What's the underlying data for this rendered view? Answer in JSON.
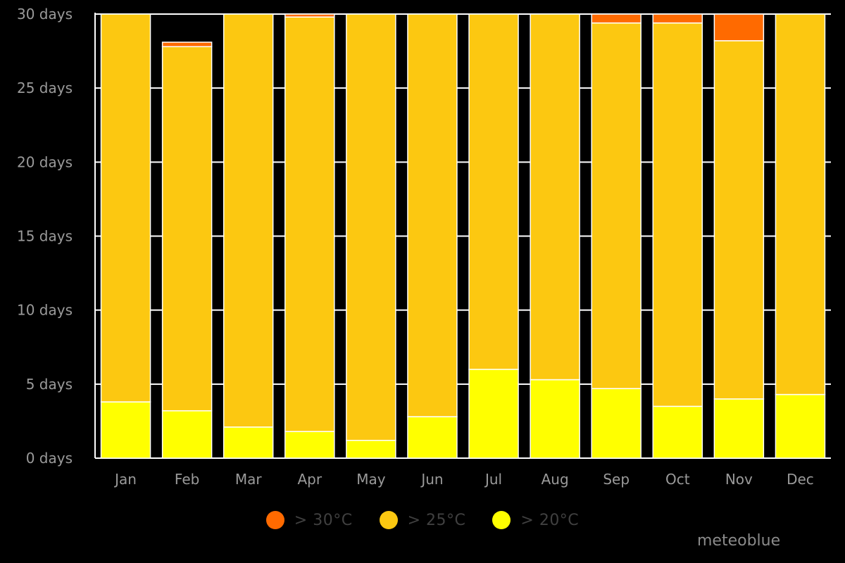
{
  "chart_data": {
    "type": "bar",
    "stacked": true,
    "categories": [
      "Jan",
      "Feb",
      "Mar",
      "Apr",
      "May",
      "Jun",
      "Jul",
      "Aug",
      "Sep",
      "Oct",
      "Nov",
      "Dec"
    ],
    "series": [
      {
        "name": "> 20°C",
        "color": "#ffff00",
        "values": [
          3.8,
          3.2,
          2.1,
          1.8,
          1.2,
          2.8,
          6.0,
          5.3,
          4.7,
          3.5,
          4.0,
          4.3
        ]
      },
      {
        "name": "> 25°C",
        "color": "#fcc811",
        "values": [
          26.2,
          24.6,
          27.9,
          28.0,
          28.8,
          27.2,
          24.0,
          24.7,
          24.7,
          25.9,
          24.2,
          25.7
        ]
      },
      {
        "name": "> 30°C",
        "color": "#ff6a00",
        "values": [
          0,
          0.3,
          0,
          0.2,
          0,
          0,
          0,
          0,
          0.6,
          0.6,
          1.8,
          0
        ]
      }
    ],
    "yticks": [
      "0 days",
      "5 days",
      "10 days",
      "15 days",
      "20 days",
      "25 days",
      "30 days"
    ],
    "ylim": [
      0,
      30
    ],
    "grid": true,
    "legend_position": "bottom-center"
  },
  "credit": "meteoblue"
}
